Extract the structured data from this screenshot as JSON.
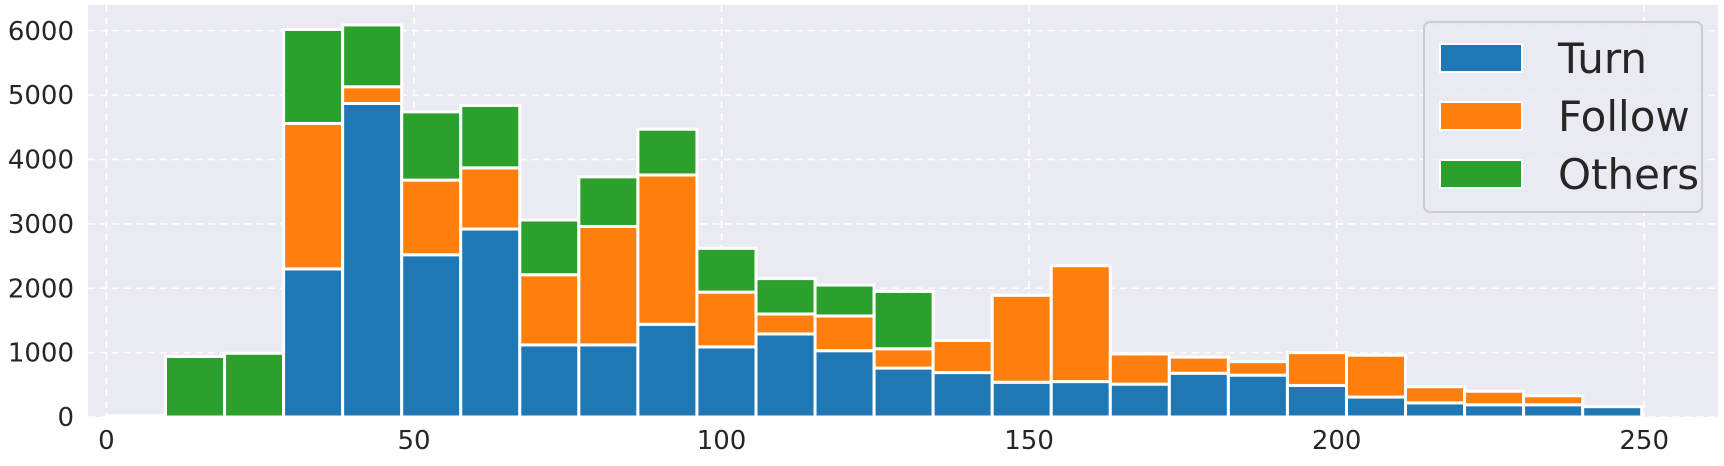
{
  "chart_data": {
    "type": "bar",
    "stacked": true,
    "bin_width": 9.6,
    "xlim": [
      -3,
      262
    ],
    "ylim": [
      0,
      6400
    ],
    "xticks": [
      0,
      50,
      100,
      150,
      200,
      250
    ],
    "yticks": [
      0,
      1000,
      2000,
      3000,
      4000,
      5000,
      6000
    ],
    "grid": true,
    "grid_style": "dashed",
    "legend_position": "top-right",
    "bin_edges": [
      0,
      9.6,
      19.2,
      28.8,
      38.4,
      48.0,
      57.6,
      67.2,
      76.8,
      86.4,
      96.0,
      105.6,
      115.2,
      124.8,
      134.4,
      144.0,
      153.6,
      163.2,
      172.8,
      182.4,
      192.0,
      201.6,
      211.2,
      220.8,
      230.4,
      240.0,
      249.6
    ],
    "series": [
      {
        "name": "Turn",
        "color": "#1f77b4",
        "values": [
          20,
          0,
          0,
          2300,
          4870,
          2520,
          2920,
          1120,
          1120,
          1440,
          1090,
          1290,
          1030,
          760,
          690,
          540,
          550,
          510,
          680,
          650,
          490,
          310,
          220,
          190,
          190,
          160
        ]
      },
      {
        "name": "Follow",
        "color": "#ff7f0e",
        "values": [
          0,
          0,
          0,
          2260,
          260,
          1160,
          950,
          1090,
          1840,
          2320,
          850,
          310,
          540,
          300,
          500,
          1350,
          1800,
          470,
          250,
          210,
          510,
          650,
          250,
          210,
          140,
          0
        ]
      },
      {
        "name": "Others",
        "color": "#2ca02c",
        "values": [
          0,
          940,
          990,
          1460,
          960,
          1060,
          970,
          850,
          770,
          710,
          680,
          550,
          480,
          890,
          0,
          0,
          0,
          0,
          0,
          0,
          0,
          0,
          0,
          0,
          0,
          0
        ]
      }
    ]
  },
  "colors": {
    "plot_background": "#eaeaf2",
    "grid": "#ffffff",
    "bar_edge": "#ffffff",
    "text": "#262626"
  }
}
